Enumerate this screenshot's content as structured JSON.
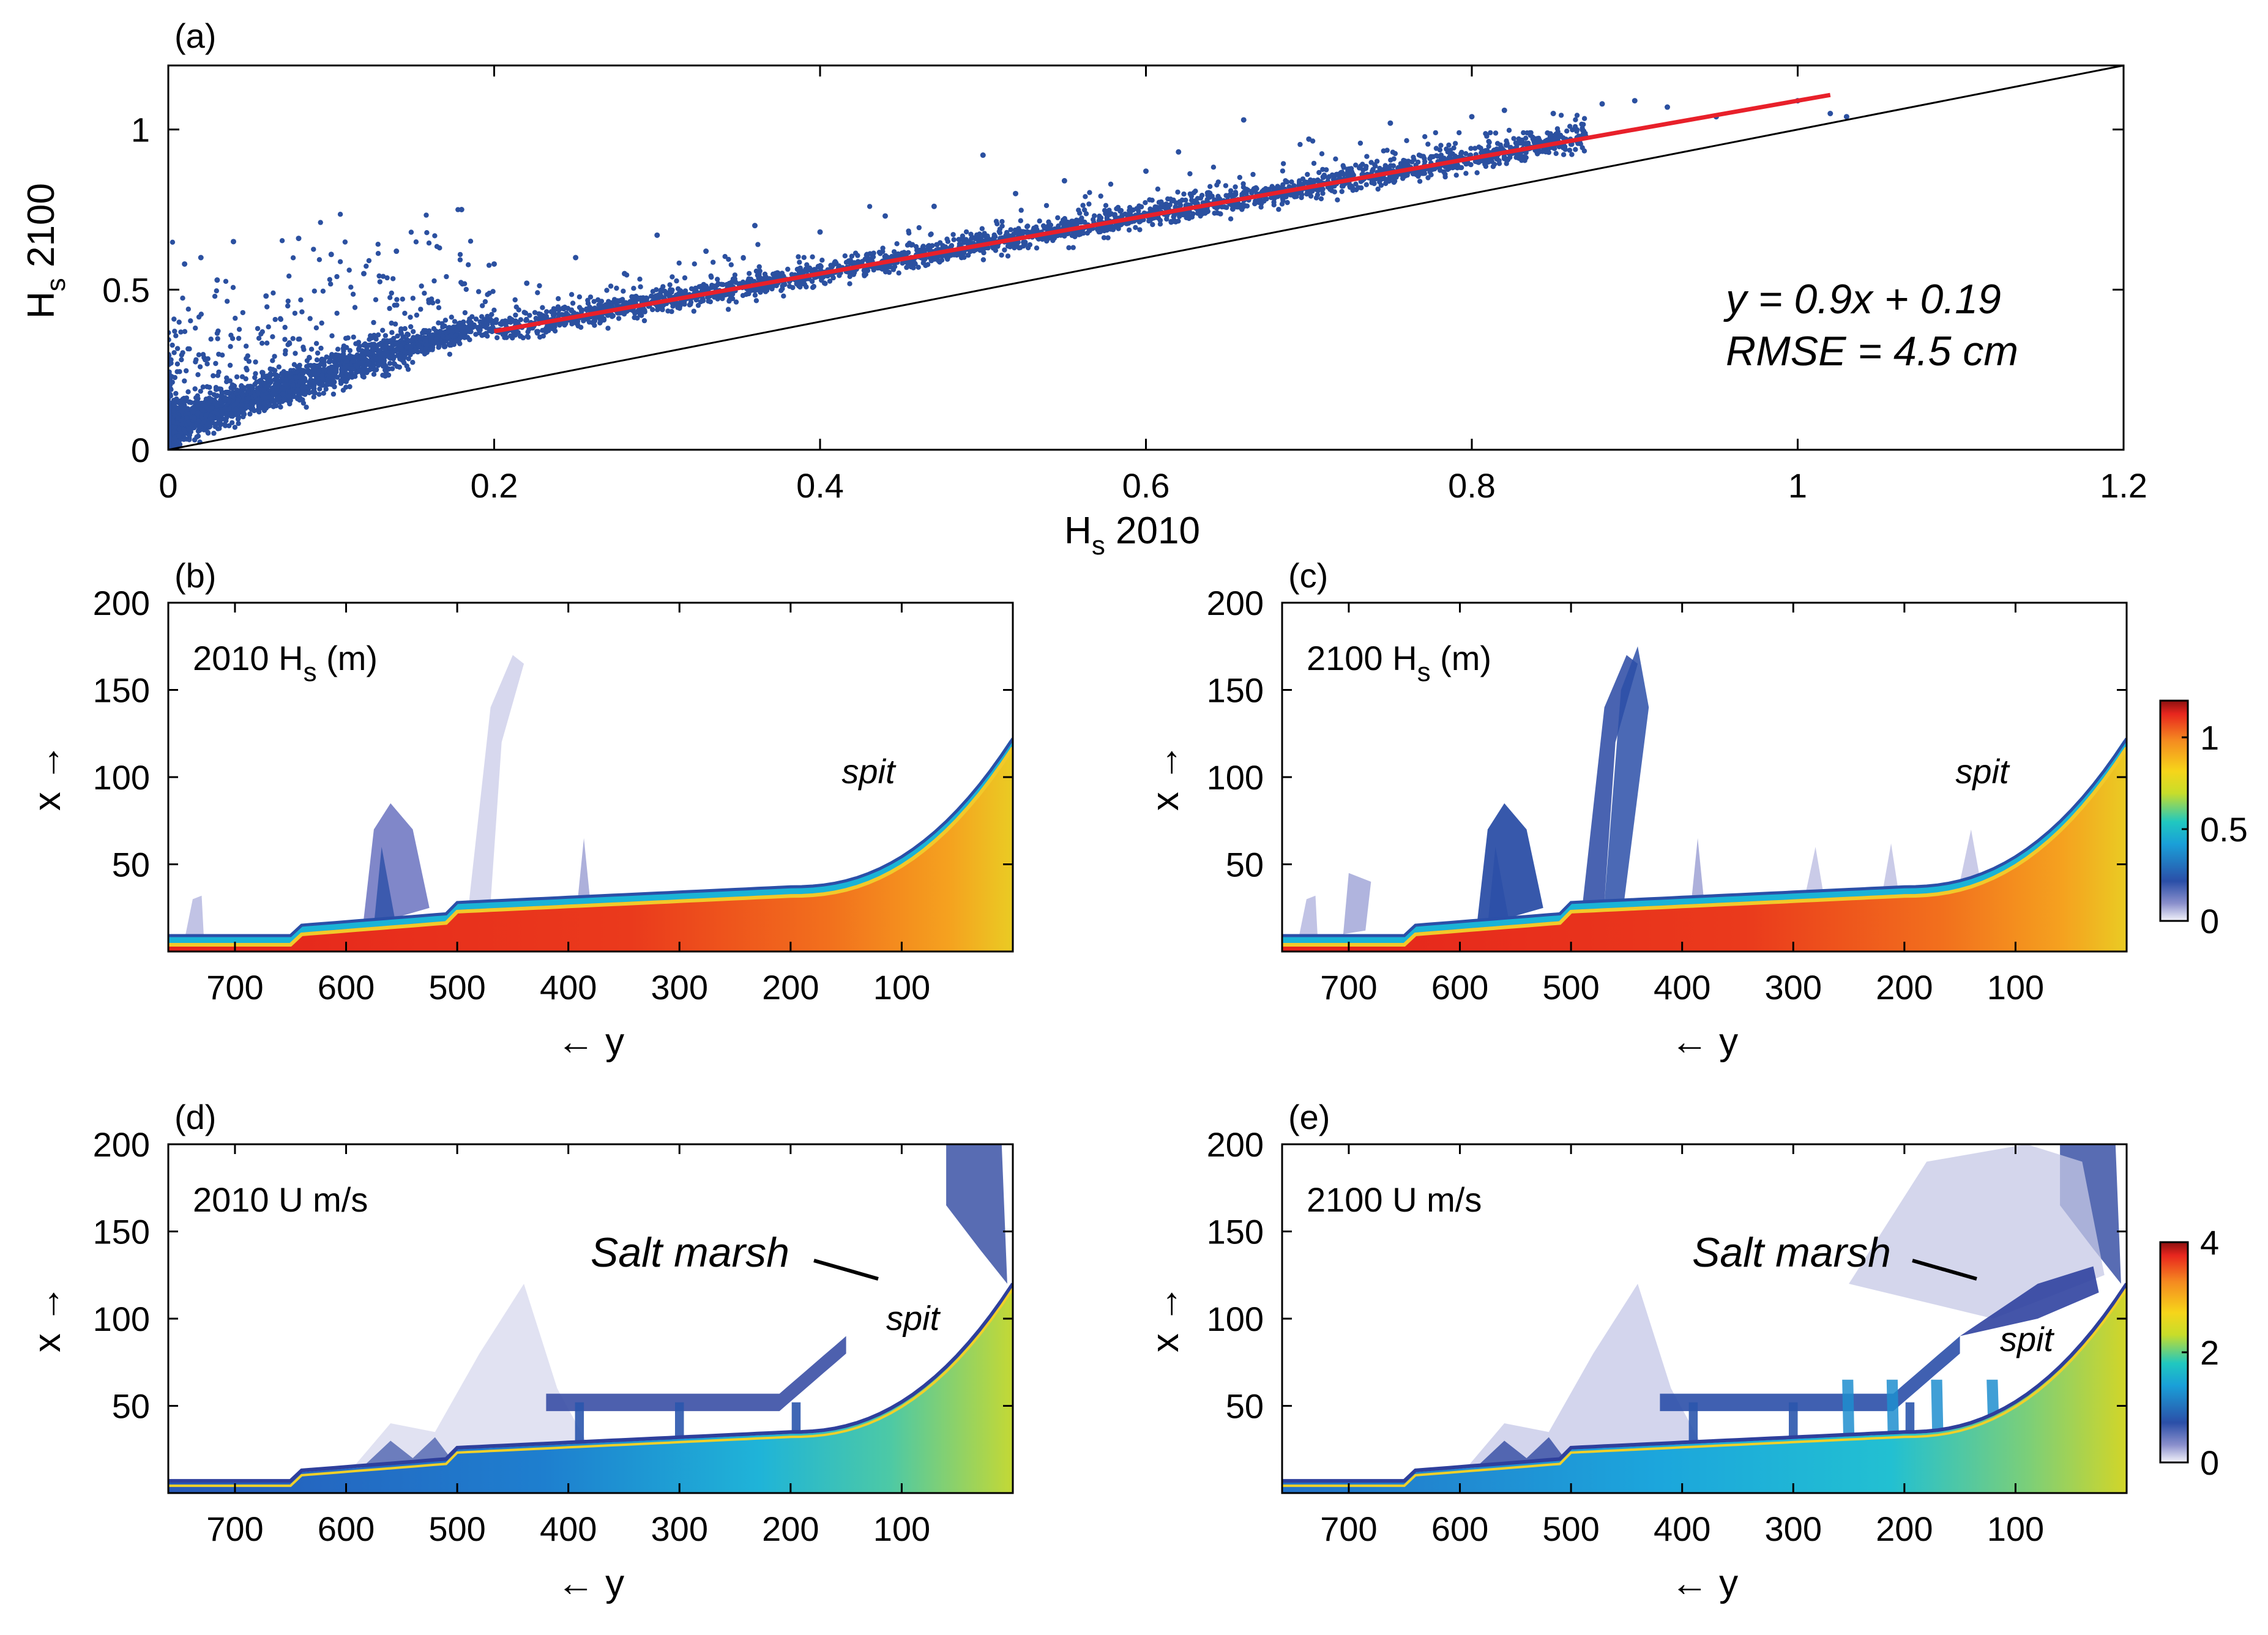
{
  "chart_data": [
    {
      "id": "a",
      "type": "scatter",
      "panel_label": "(a)",
      "xlabel": "H",
      "xlabel_sub": "s",
      "xlabel_tail": " 2010",
      "ylabel": "H",
      "ylabel_sub": "s",
      "ylabel_tail": " 2100",
      "xlim": [
        0,
        1.2
      ],
      "ylim": [
        0,
        1.2
      ],
      "xticks": [
        0,
        0.2,
        0.4,
        0.6,
        0.8,
        1,
        1.2
      ],
      "xtick_labels": [
        "0",
        "0.2",
        "0.4",
        "0.6",
        "0.8",
        "1",
        "1.2"
      ],
      "yticks": [
        0,
        0.5,
        1
      ],
      "ytick_labels": [
        "0",
        "0.5",
        "1"
      ],
      "fit": {
        "slope": 0.9,
        "intercept": 0.19,
        "x_range": [
          0.2,
          1.02
        ]
      },
      "identity_line": true,
      "annotation_lines": [
        "y = 0.9x + 0.19",
        "RMSE = 4.5 cm"
      ],
      "point_color": "#2b50a0",
      "fit_color": "#e8202a",
      "outlier_points": [
        [
          0.01,
          0.58
        ],
        [
          0.02,
          0.6
        ],
        [
          0.03,
          0.53
        ],
        [
          0.04,
          0.65
        ],
        [
          0.06,
          0.48
        ],
        [
          0.08,
          0.66
        ],
        [
          0.1,
          0.61
        ],
        [
          0.12,
          0.55
        ],
        [
          0.14,
          0.62
        ],
        [
          0.16,
          0.46
        ],
        [
          0.18,
          0.75
        ],
        [
          0.2,
          0.58
        ],
        [
          0.22,
          0.52
        ],
        [
          0.25,
          0.6
        ],
        [
          0.28,
          0.55
        ],
        [
          0.3,
          0.67
        ],
        [
          0.33,
          0.62
        ],
        [
          0.36,
          0.7
        ],
        [
          0.4,
          0.68
        ],
        [
          0.44,
          0.73
        ],
        [
          0.47,
          0.76
        ],
        [
          0.5,
          0.92
        ],
        [
          0.52,
          0.8
        ],
        [
          0.55,
          0.84
        ],
        [
          0.6,
          0.87
        ],
        [
          0.62,
          0.93
        ],
        [
          0.66,
          1.03
        ],
        [
          0.7,
          0.97
        ],
        [
          0.75,
          1.02
        ],
        [
          0.8,
          1.04
        ],
        [
          0.82,
          1.06
        ],
        [
          0.85,
          1.05
        ],
        [
          0.88,
          1.08
        ],
        [
          0.9,
          1.09
        ],
        [
          0.92,
          1.07
        ],
        [
          0.95,
          1.04
        ],
        [
          1.0,
          1.09
        ],
        [
          1.02,
          1.05
        ],
        [
          1.03,
          1.04
        ]
      ]
    },
    {
      "id": "b",
      "type": "heatmap",
      "panel_label": "(b)",
      "title_pre": "2010 H",
      "title_sub": "s",
      "title_post": " (m)",
      "xlabel": "← y",
      "ylabel": "x →",
      "xlim": [
        760,
        0
      ],
      "ylim": [
        0,
        200
      ],
      "xticks": [
        700,
        600,
        500,
        400,
        300,
        200,
        100
      ],
      "yticks": [
        50,
        100,
        150,
        200
      ],
      "spit_label": "spit",
      "spit_pos": [
        130,
        100
      ],
      "colorbar": false
    },
    {
      "id": "c",
      "type": "heatmap",
      "panel_label": "(c)",
      "title_pre": "2100 H",
      "title_sub": "s",
      "title_post": " (m)",
      "xlabel": "← y",
      "ylabel": "x →",
      "xlim": [
        760,
        0
      ],
      "ylim": [
        0,
        200
      ],
      "xticks": [
        700,
        600,
        500,
        400,
        300,
        200,
        100
      ],
      "yticks": [
        50,
        100,
        150,
        200
      ],
      "spit_label": "spit",
      "spit_pos": [
        130,
        100
      ],
      "colorbar": {
        "ticks": [
          0,
          0.5,
          1
        ],
        "tick_labels": [
          "0",
          "0.5",
          "1"
        ],
        "range": [
          0,
          1.2
        ]
      }
    },
    {
      "id": "d",
      "type": "heatmap",
      "panel_label": "(d)",
      "title_pre": "2010 U m/s",
      "title_sub": "",
      "title_post": "",
      "xlabel": "← y",
      "ylabel": "x →",
      "xlim": [
        760,
        0
      ],
      "ylim": [
        0,
        200
      ],
      "xticks": [
        700,
        600,
        500,
        400,
        300,
        200,
        100
      ],
      "yticks": [
        50,
        100,
        150,
        200
      ],
      "spit_label": "spit",
      "spit_pos": [
        90,
        97
      ],
      "marsh_label": "Salt marsh",
      "colorbar": false
    },
    {
      "id": "e",
      "type": "heatmap",
      "panel_label": "(e)",
      "title_pre": "2100 U m/s",
      "title_sub": "",
      "title_post": "",
      "xlabel": "← y",
      "ylabel": "x →",
      "xlim": [
        760,
        0
      ],
      "ylim": [
        0,
        200
      ],
      "xticks": [
        700,
        600,
        500,
        400,
        300,
        200,
        100
      ],
      "yticks": [
        50,
        100,
        150,
        200
      ],
      "spit_label": "spit",
      "spit_pos": [
        90,
        85
      ],
      "marsh_label": "Salt marsh",
      "colorbar": {
        "ticks": [
          0,
          2,
          4
        ],
        "tick_labels": [
          "0",
          "2",
          "4"
        ],
        "range": [
          0,
          4
        ]
      }
    }
  ]
}
